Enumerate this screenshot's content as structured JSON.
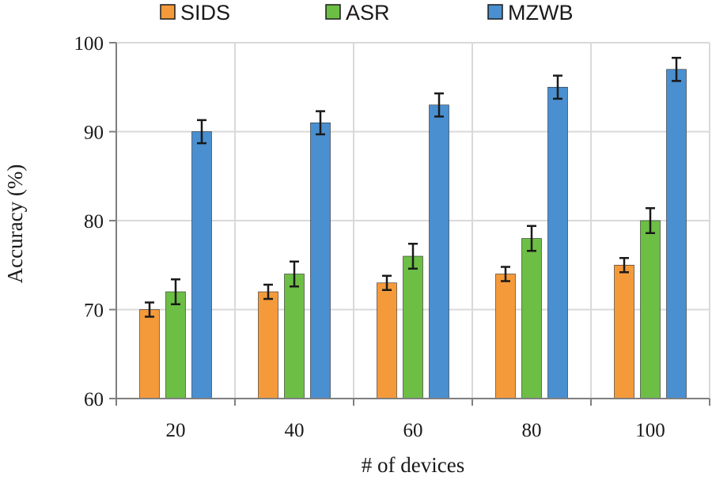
{
  "chart_data": {
    "type": "bar",
    "title": "",
    "xlabel": "# of devices",
    "ylabel": "Accuracy (%)",
    "categories": [
      "20",
      "40",
      "60",
      "80",
      "100"
    ],
    "ylim": [
      60,
      100
    ],
    "yticks": [
      60,
      70,
      80,
      90,
      100
    ],
    "grid": true,
    "legend_position": "top",
    "series": [
      {
        "name": "SIDS",
        "color": "#F59A3A",
        "values": [
          70,
          72,
          73,
          74,
          75
        ],
        "errors": [
          0.8,
          0.8,
          0.8,
          0.8,
          0.8
        ]
      },
      {
        "name": "ASR",
        "color": "#6DBE45",
        "values": [
          72,
          74,
          76,
          78,
          80
        ],
        "errors": [
          1.4,
          1.4,
          1.4,
          1.4,
          1.4
        ]
      },
      {
        "name": "MZWB",
        "color": "#4A8FD0",
        "values": [
          90,
          91,
          93,
          95,
          97
        ],
        "errors": [
          1.3,
          1.3,
          1.3,
          1.3,
          1.3
        ]
      }
    ]
  }
}
